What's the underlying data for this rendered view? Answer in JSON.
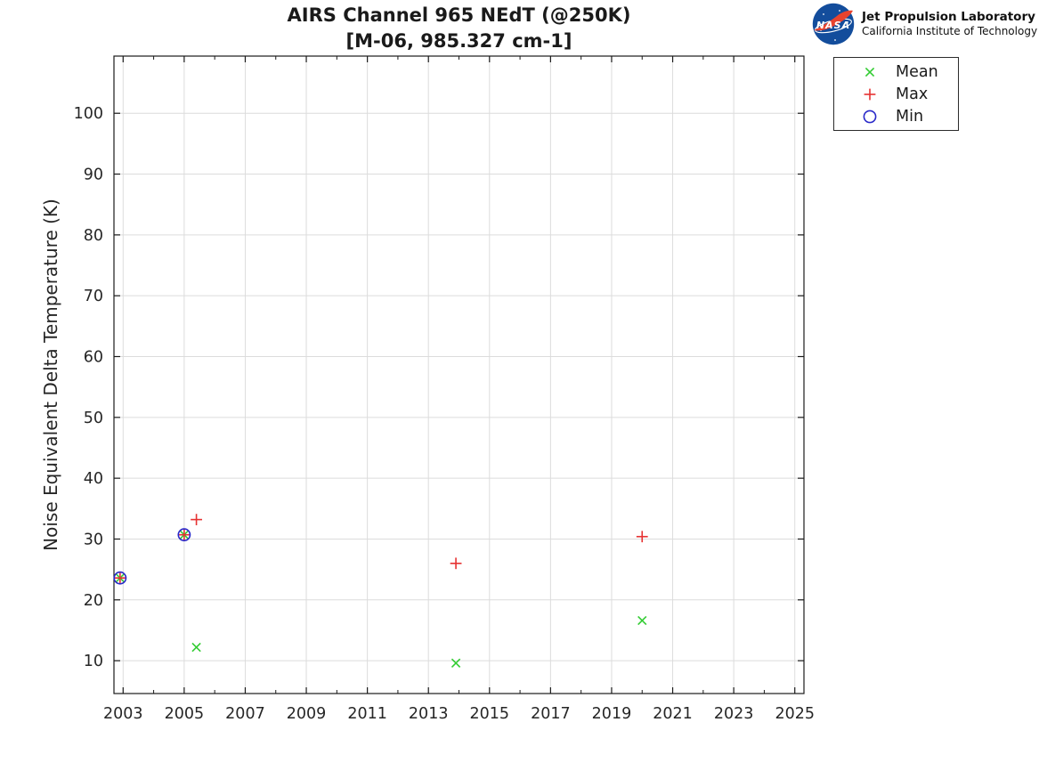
{
  "brand": {
    "nasa_wordmark": "NASA",
    "jpl_name": "Jet Propulsion Laboratory",
    "jpl_institution": "California Institute of Technology",
    "nasa_blue": "#134d9c",
    "nasa_red": "#e8432e"
  },
  "chart_data": {
    "type": "scatter",
    "title": "AIRS Channel 965 NEdT (@250K)",
    "subtitle": "[M-06, 985.327 cm-1]",
    "xlabel": "",
    "ylabel": "Noise Equivalent Delta Temperature (K)",
    "xlim": [
      2002.7,
      2025.3
    ],
    "ylim": [
      4.6,
      109.4
    ],
    "xticks": [
      2003,
      2005,
      2007,
      2009,
      2011,
      2013,
      2015,
      2017,
      2019,
      2021,
      2023,
      2025
    ],
    "x_minor_tick_step": 1,
    "yticks": [
      10,
      20,
      30,
      40,
      50,
      60,
      70,
      80,
      90,
      100
    ],
    "grid": true,
    "grid_color": "#dcdcdc",
    "axis_color": "#1a1a1a",
    "tick_label_color": "#262626",
    "legend_position": "outside-top-right",
    "series": [
      {
        "name": "Mean",
        "marker": "x",
        "color": "#33cc33",
        "points": [
          [
            2002.9,
            23.6
          ],
          [
            2005.0,
            30.7
          ],
          [
            2005.4,
            12.2
          ],
          [
            2013.9,
            9.6
          ],
          [
            2020.0,
            16.6
          ]
        ]
      },
      {
        "name": "Max",
        "marker": "+",
        "color": "#e63232",
        "points": [
          [
            2002.9,
            23.6
          ],
          [
            2005.0,
            30.7
          ],
          [
            2005.4,
            33.2
          ],
          [
            2013.9,
            26.0
          ],
          [
            2020.0,
            30.4
          ]
        ]
      },
      {
        "name": "Min",
        "marker": "o",
        "color": "#2929c9",
        "points": [
          [
            2002.9,
            23.6
          ],
          [
            2005.0,
            30.7
          ]
        ]
      }
    ]
  }
}
